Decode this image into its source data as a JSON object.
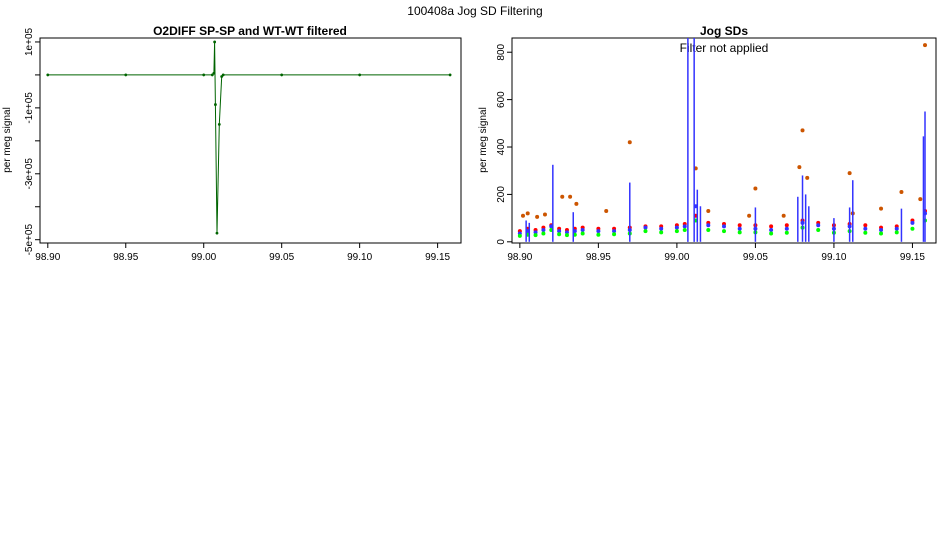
{
  "page_title": "100408a   Jog SD Filtering",
  "chart_data": [
    {
      "type": "line",
      "title": "O2DIFF SP-SP and WT-WT filtered",
      "xlabel": "",
      "ylabel": "per meg signal",
      "xlim": [
        98.895,
        99.165
      ],
      "ylim": [
        -510000,
        112000
      ],
      "x_ticks": [
        98.9,
        98.95,
        99.0,
        99.05,
        99.1,
        99.15
      ],
      "x_tick_labels": [
        "98.90",
        "98.95",
        "99.00",
        "99.05",
        "99.10",
        "99.15"
      ],
      "y_ticks": [
        100000,
        0,
        -100000,
        -200000,
        -300000,
        -400000,
        -500000
      ],
      "y_tick_labels": [
        "1e+05",
        "",
        "-1e+05",
        "",
        "-3e+05",
        "",
        "-5e+05"
      ],
      "series": [
        {
          "color": "#006400",
          "x": [
            98.9,
            98.95,
            99.0,
            99.0055,
            99.0065,
            99.007,
            99.0075,
            99.0085,
            99.01,
            99.0115,
            99.0125,
            99.05,
            99.1,
            99.158
          ],
          "y": [
            0,
            0,
            0,
            0,
            5000,
            100000,
            -90000,
            -480000,
            -150000,
            -5000,
            0,
            0,
            0,
            0
          ]
        }
      ]
    },
    {
      "type": "scatter",
      "title": "Jog SDs",
      "annotation": "Filter not applied",
      "xlabel": "",
      "ylabel": "per meg signal",
      "xlim": [
        98.895,
        99.165
      ],
      "ylim": [
        -5,
        860
      ],
      "x_ticks": [
        98.9,
        98.95,
        99.0,
        99.05,
        99.1,
        99.15
      ],
      "x_tick_labels": [
        "98.90",
        "98.95",
        "99.00",
        "99.05",
        "99.10",
        "99.15"
      ],
      "y_ticks": [
        0,
        200,
        400,
        600,
        800
      ],
      "y_tick_labels": [
        "0",
        "200",
        "400",
        "600",
        "800"
      ],
      "series": [
        {
          "color": "#ff0000",
          "x": [
            98.9,
            98.905,
            98.91,
            98.915,
            98.92,
            98.925,
            98.93,
            98.935,
            98.94,
            98.95,
            98.96,
            98.97,
            98.98,
            98.99,
            99.0,
            99.005,
            99.012,
            99.02,
            99.03,
            99.04,
            99.05,
            99.06,
            99.07,
            99.08,
            99.09,
            99.1,
            99.11,
            99.12,
            99.13,
            99.14,
            99.15,
            99.158
          ],
          "y": [
            45,
            55,
            50,
            60,
            70,
            55,
            50,
            55,
            60,
            55,
            55,
            60,
            65,
            65,
            70,
            75,
            110,
            80,
            75,
            70,
            70,
            65,
            70,
            90,
            80,
            70,
            75,
            70,
            60,
            65,
            90,
            130
          ]
        },
        {
          "color": "#3333ff",
          "x": [
            98.9,
            98.905,
            98.91,
            98.915,
            98.92,
            98.925,
            98.93,
            98.935,
            98.94,
            98.95,
            98.96,
            98.97,
            98.98,
            98.99,
            99.0,
            99.005,
            99.012,
            99.02,
            99.03,
            99.04,
            99.05,
            99.06,
            99.07,
            99.08,
            99.09,
            99.1,
            99.11,
            99.12,
            99.13,
            99.14,
            99.15,
            99.158
          ],
          "y": [
            35,
            45,
            40,
            50,
            65,
            45,
            40,
            45,
            50,
            45,
            45,
            50,
            60,
            55,
            60,
            65,
            150,
            70,
            65,
            55,
            55,
            50,
            55,
            80,
            70,
            55,
            65,
            55,
            50,
            55,
            80,
            120
          ]
        },
        {
          "color": "#00ff00",
          "x": [
            98.9,
            98.905,
            98.91,
            98.915,
            98.92,
            98.925,
            98.93,
            98.935,
            98.94,
            98.95,
            98.96,
            98.97,
            98.98,
            98.99,
            99.0,
            99.005,
            99.012,
            99.02,
            99.03,
            99.04,
            99.05,
            99.06,
            99.07,
            99.08,
            99.09,
            99.1,
            99.11,
            99.12,
            99.13,
            99.14,
            99.15,
            99.158
          ],
          "y": [
            25,
            30,
            28,
            35,
            50,
            32,
            28,
            30,
            35,
            30,
            32,
            35,
            45,
            40,
            45,
            50,
            90,
            50,
            45,
            40,
            40,
            35,
            38,
            60,
            50,
            38,
            45,
            38,
            35,
            40,
            55,
            90
          ]
        },
        {
          "color": "#cc5500",
          "x": [
            98.902,
            98.905,
            98.911,
            98.916,
            98.927,
            98.932,
            98.936,
            98.955,
            98.97,
            99.012,
            99.02,
            99.046,
            99.05,
            99.068,
            99.078,
            99.08,
            99.083,
            99.11,
            99.112,
            99.13,
            99.143,
            99.155,
            99.158
          ],
          "y": [
            110,
            120,
            105,
            115,
            190,
            190,
            160,
            130,
            420,
            310,
            130,
            110,
            225,
            110,
            315,
            470,
            270,
            290,
            120,
            140,
            210,
            180,
            830
          ]
        }
      ],
      "spikes": {
        "color": "#3333ff",
        "x": [
          98.904,
          98.906,
          98.921,
          98.934,
          98.97,
          99.007,
          99.011,
          99.013,
          99.015,
          99.05,
          99.077,
          99.08,
          99.082,
          99.084,
          99.1,
          99.11,
          99.112,
          99.143,
          99.157,
          99.158
        ],
        "y": [
          90,
          80,
          325,
          125,
          250,
          860,
          860,
          220,
          150,
          145,
          190,
          280,
          200,
          150,
          100,
          145,
          260,
          140,
          445,
          550
        ]
      }
    }
  ]
}
